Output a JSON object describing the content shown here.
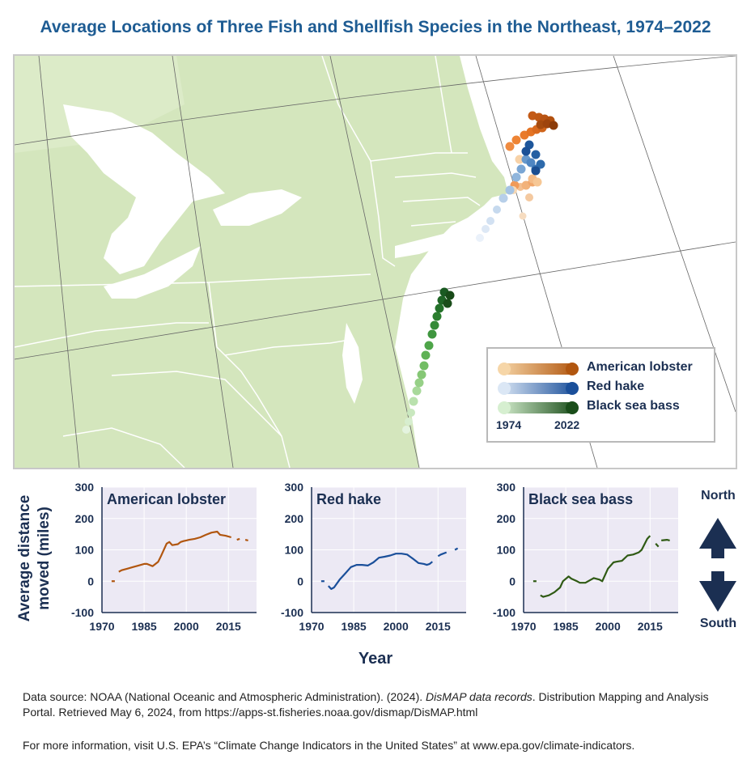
{
  "title": "Average Locations of Three Fish and Shellfish Species in the Northeast, 1974–2022",
  "legend": {
    "items": [
      {
        "label": "American lobster",
        "color_start": "#f6d6a8",
        "color_end": "#b1560f"
      },
      {
        "label": "Red hake",
        "color_start": "#dbe7f5",
        "color_end": "#1a4f9a"
      },
      {
        "label": "Black sea bass",
        "color_start": "#d6efd0",
        "color_end": "#1a4d1a"
      }
    ],
    "year_start": "1974",
    "year_end": "2022"
  },
  "chart_data": [
    {
      "type": "line",
      "title": "American lobster",
      "color": "#b1560f",
      "xlim": [
        1970,
        2025
      ],
      "ylim": [
        -100,
        300
      ],
      "x": [
        1974,
        1976,
        1977,
        1979,
        1981,
        1983,
        1985,
        1986,
        1988,
        1990,
        1991,
        1993,
        1994,
        1995,
        1997,
        1998,
        1999,
        2000,
        2001,
        2003,
        2005,
        2007,
        2009,
        2011,
        2012,
        2014,
        2016,
        2018,
        2019,
        2021,
        2022
      ],
      "y": [
        0,
        30,
        35,
        40,
        45,
        50,
        55,
        55,
        48,
        62,
        80,
        120,
        125,
        115,
        118,
        125,
        128,
        130,
        132,
        135,
        140,
        148,
        155,
        158,
        148,
        145,
        140,
        132,
        135,
        132,
        130
      ],
      "gaps_after": [
        1974,
        2016,
        2019
      ]
    },
    {
      "type": "line",
      "title": "Red hake",
      "color": "#1a4f9a",
      "xlim": [
        1970,
        2025
      ],
      "ylim": [
        -100,
        300
      ],
      "x": [
        1974,
        1976,
        1977,
        1978,
        1980,
        1982,
        1984,
        1986,
        1988,
        1990,
        1992,
        1994,
        1996,
        1998,
        2000,
        2002,
        2004,
        2006,
        2008,
        2010,
        2011,
        2012,
        2013,
        2015,
        2016,
        2018,
        2021,
        2022
      ],
      "y": [
        0,
        -15,
        -25,
        -20,
        5,
        25,
        45,
        52,
        52,
        50,
        60,
        75,
        78,
        82,
        88,
        88,
        85,
        72,
        58,
        55,
        52,
        55,
        62,
        80,
        85,
        92,
        100,
        105
      ],
      "gaps_after": [
        1974,
        2013,
        2018
      ]
    },
    {
      "type": "line",
      "title": "Black sea bass",
      "color": "#2f5a14",
      "xlim": [
        1970,
        2025
      ],
      "ylim": [
        -100,
        300
      ],
      "x": [
        1974,
        1976,
        1977,
        1979,
        1981,
        1983,
        1984,
        1986,
        1987,
        1989,
        1990,
        1992,
        1994,
        1995,
        1997,
        1998,
        2000,
        2002,
        2003,
        2005,
        2007,
        2009,
        2011,
        2012,
        2014,
        2015,
        2017,
        2018,
        2019,
        2021,
        2022
      ],
      "y": [
        0,
        -45,
        -50,
        -45,
        -35,
        -20,
        0,
        15,
        8,
        0,
        -5,
        -5,
        5,
        10,
        5,
        0,
        40,
        60,
        62,
        65,
        82,
        85,
        92,
        100,
        135,
        145,
        120,
        110,
        130,
        132,
        130
      ],
      "gaps_after": [
        1974,
        2015,
        2018
      ]
    }
  ],
  "axes": {
    "y_label_line1": "Average distance",
    "y_label_line2": "moved (miles)",
    "x_label": "Year",
    "y_ticks": [
      "300",
      "200",
      "100",
      "0",
      "-100"
    ],
    "x_ticks": [
      "1970",
      "1985",
      "2000",
      "2015"
    ]
  },
  "direction": {
    "north": "North",
    "south": "South"
  },
  "source": {
    "line1_prefix": "Data source: NOAA (National Oceanic and Atmospheric Administration). (2024). ",
    "line1_italic": "DisMAP data records",
    "line1_suffix": ". Distribution Mapping and Analysis Portal. Retrieved May 6, 2024, from https://apps-st.fisheries.noaa.gov/dismap/DisMAP.html",
    "more_info": "For more information, visit U.S. EPA’s “Climate Change Indicators in the United States” at www.epa.gov/climate-indicators."
  }
}
